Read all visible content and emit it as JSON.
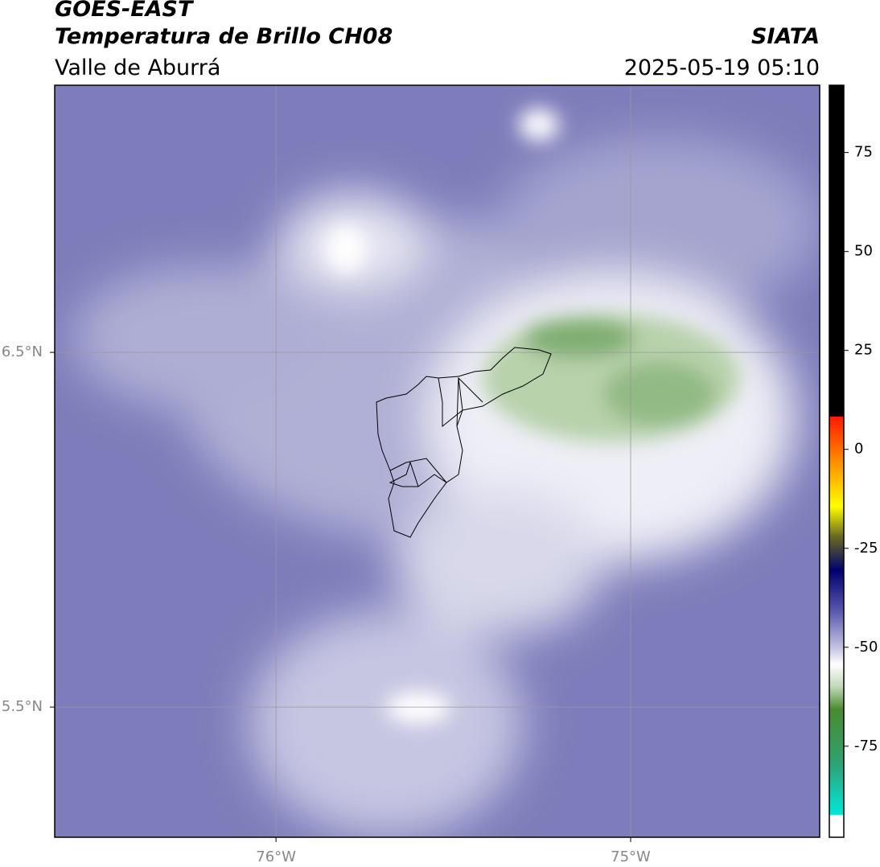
{
  "header": {
    "title": "GOES-EAST",
    "subtitle": "Temperatura de Brillo CH08",
    "region": "Valle de Aburrá",
    "source": "SIATA",
    "datetime": "2025-05-19 05:10"
  },
  "map": {
    "latlim": [
      5.133,
      7.253
    ],
    "lonlim": [
      -76.624,
      -74.467
    ],
    "latticks": [
      {
        "value": 6.5,
        "label": "6.5°N"
      },
      {
        "value": 5.5,
        "label": "5.5°N"
      }
    ],
    "lonticks": [
      {
        "value": -76,
        "label": "76°W"
      },
      {
        "value": -75,
        "label": "75°W"
      }
    ]
  },
  "colorbar": {
    "lim": [
      -98,
      92
    ],
    "ticks": [
      75,
      50,
      25,
      0,
      -25,
      -50,
      -75
    ]
  }
}
